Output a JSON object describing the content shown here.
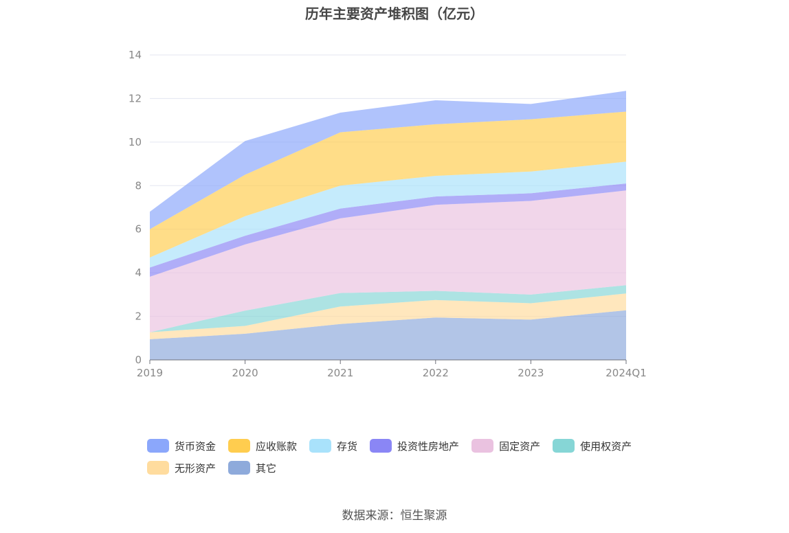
{
  "chart_data": {
    "type": "area",
    "stacked": true,
    "title": "历年主要资产堆积图（亿元）",
    "categories": [
      "2019",
      "2020",
      "2021",
      "2022",
      "2023",
      "2024Q1"
    ],
    "ylim": [
      0,
      14
    ],
    "yticks": [
      0,
      2,
      4,
      6,
      8,
      10,
      12,
      14
    ],
    "grid": true,
    "legend_position": "bottom",
    "series": [
      {
        "name": "其它",
        "color": "#8eaadb",
        "values": [
          0.95,
          1.2,
          1.65,
          1.95,
          1.85,
          2.28
        ]
      },
      {
        "name": "无形资产",
        "color": "#ffdc9e",
        "values": [
          0.32,
          0.36,
          0.8,
          0.8,
          0.75,
          0.77
        ]
      },
      {
        "name": "使用权资产",
        "color": "#86d6d6",
        "values": [
          0.0,
          0.7,
          0.62,
          0.42,
          0.4,
          0.38
        ]
      },
      {
        "name": "固定资产",
        "color": "#eac2e0",
        "values": [
          2.55,
          3.04,
          3.43,
          3.95,
          4.3,
          4.35
        ]
      },
      {
        "name": "投资性房地产",
        "color": "#8a86f5",
        "values": [
          0.42,
          0.4,
          0.45,
          0.38,
          0.35,
          0.32
        ]
      },
      {
        "name": "存货",
        "color": "#a9e2fb",
        "values": [
          0.46,
          0.9,
          1.05,
          0.95,
          1.0,
          1.0
        ]
      },
      {
        "name": "应收账款",
        "color": "#ffcd4f",
        "values": [
          1.3,
          1.9,
          2.45,
          2.37,
          2.4,
          2.3
        ]
      },
      {
        "name": "货币资金",
        "color": "#8ba7fb",
        "values": [
          0.8,
          1.55,
          0.9,
          1.1,
          0.7,
          0.95
        ]
      }
    ]
  },
  "legend": [
    {
      "name": "货币资金",
      "color": "#8ba7fb"
    },
    {
      "name": "应收账款",
      "color": "#ffcd4f"
    },
    {
      "name": "存货",
      "color": "#a9e2fb"
    },
    {
      "name": "投资性房地产",
      "color": "#8a86f5"
    },
    {
      "name": "固定资产",
      "color": "#eac2e0"
    },
    {
      "name": "使用权资产",
      "color": "#86d6d6"
    },
    {
      "name": "无形资产",
      "color": "#ffdc9e"
    },
    {
      "name": "其它",
      "color": "#8eaadb"
    }
  ],
  "source": "数据来源：恒生聚源"
}
